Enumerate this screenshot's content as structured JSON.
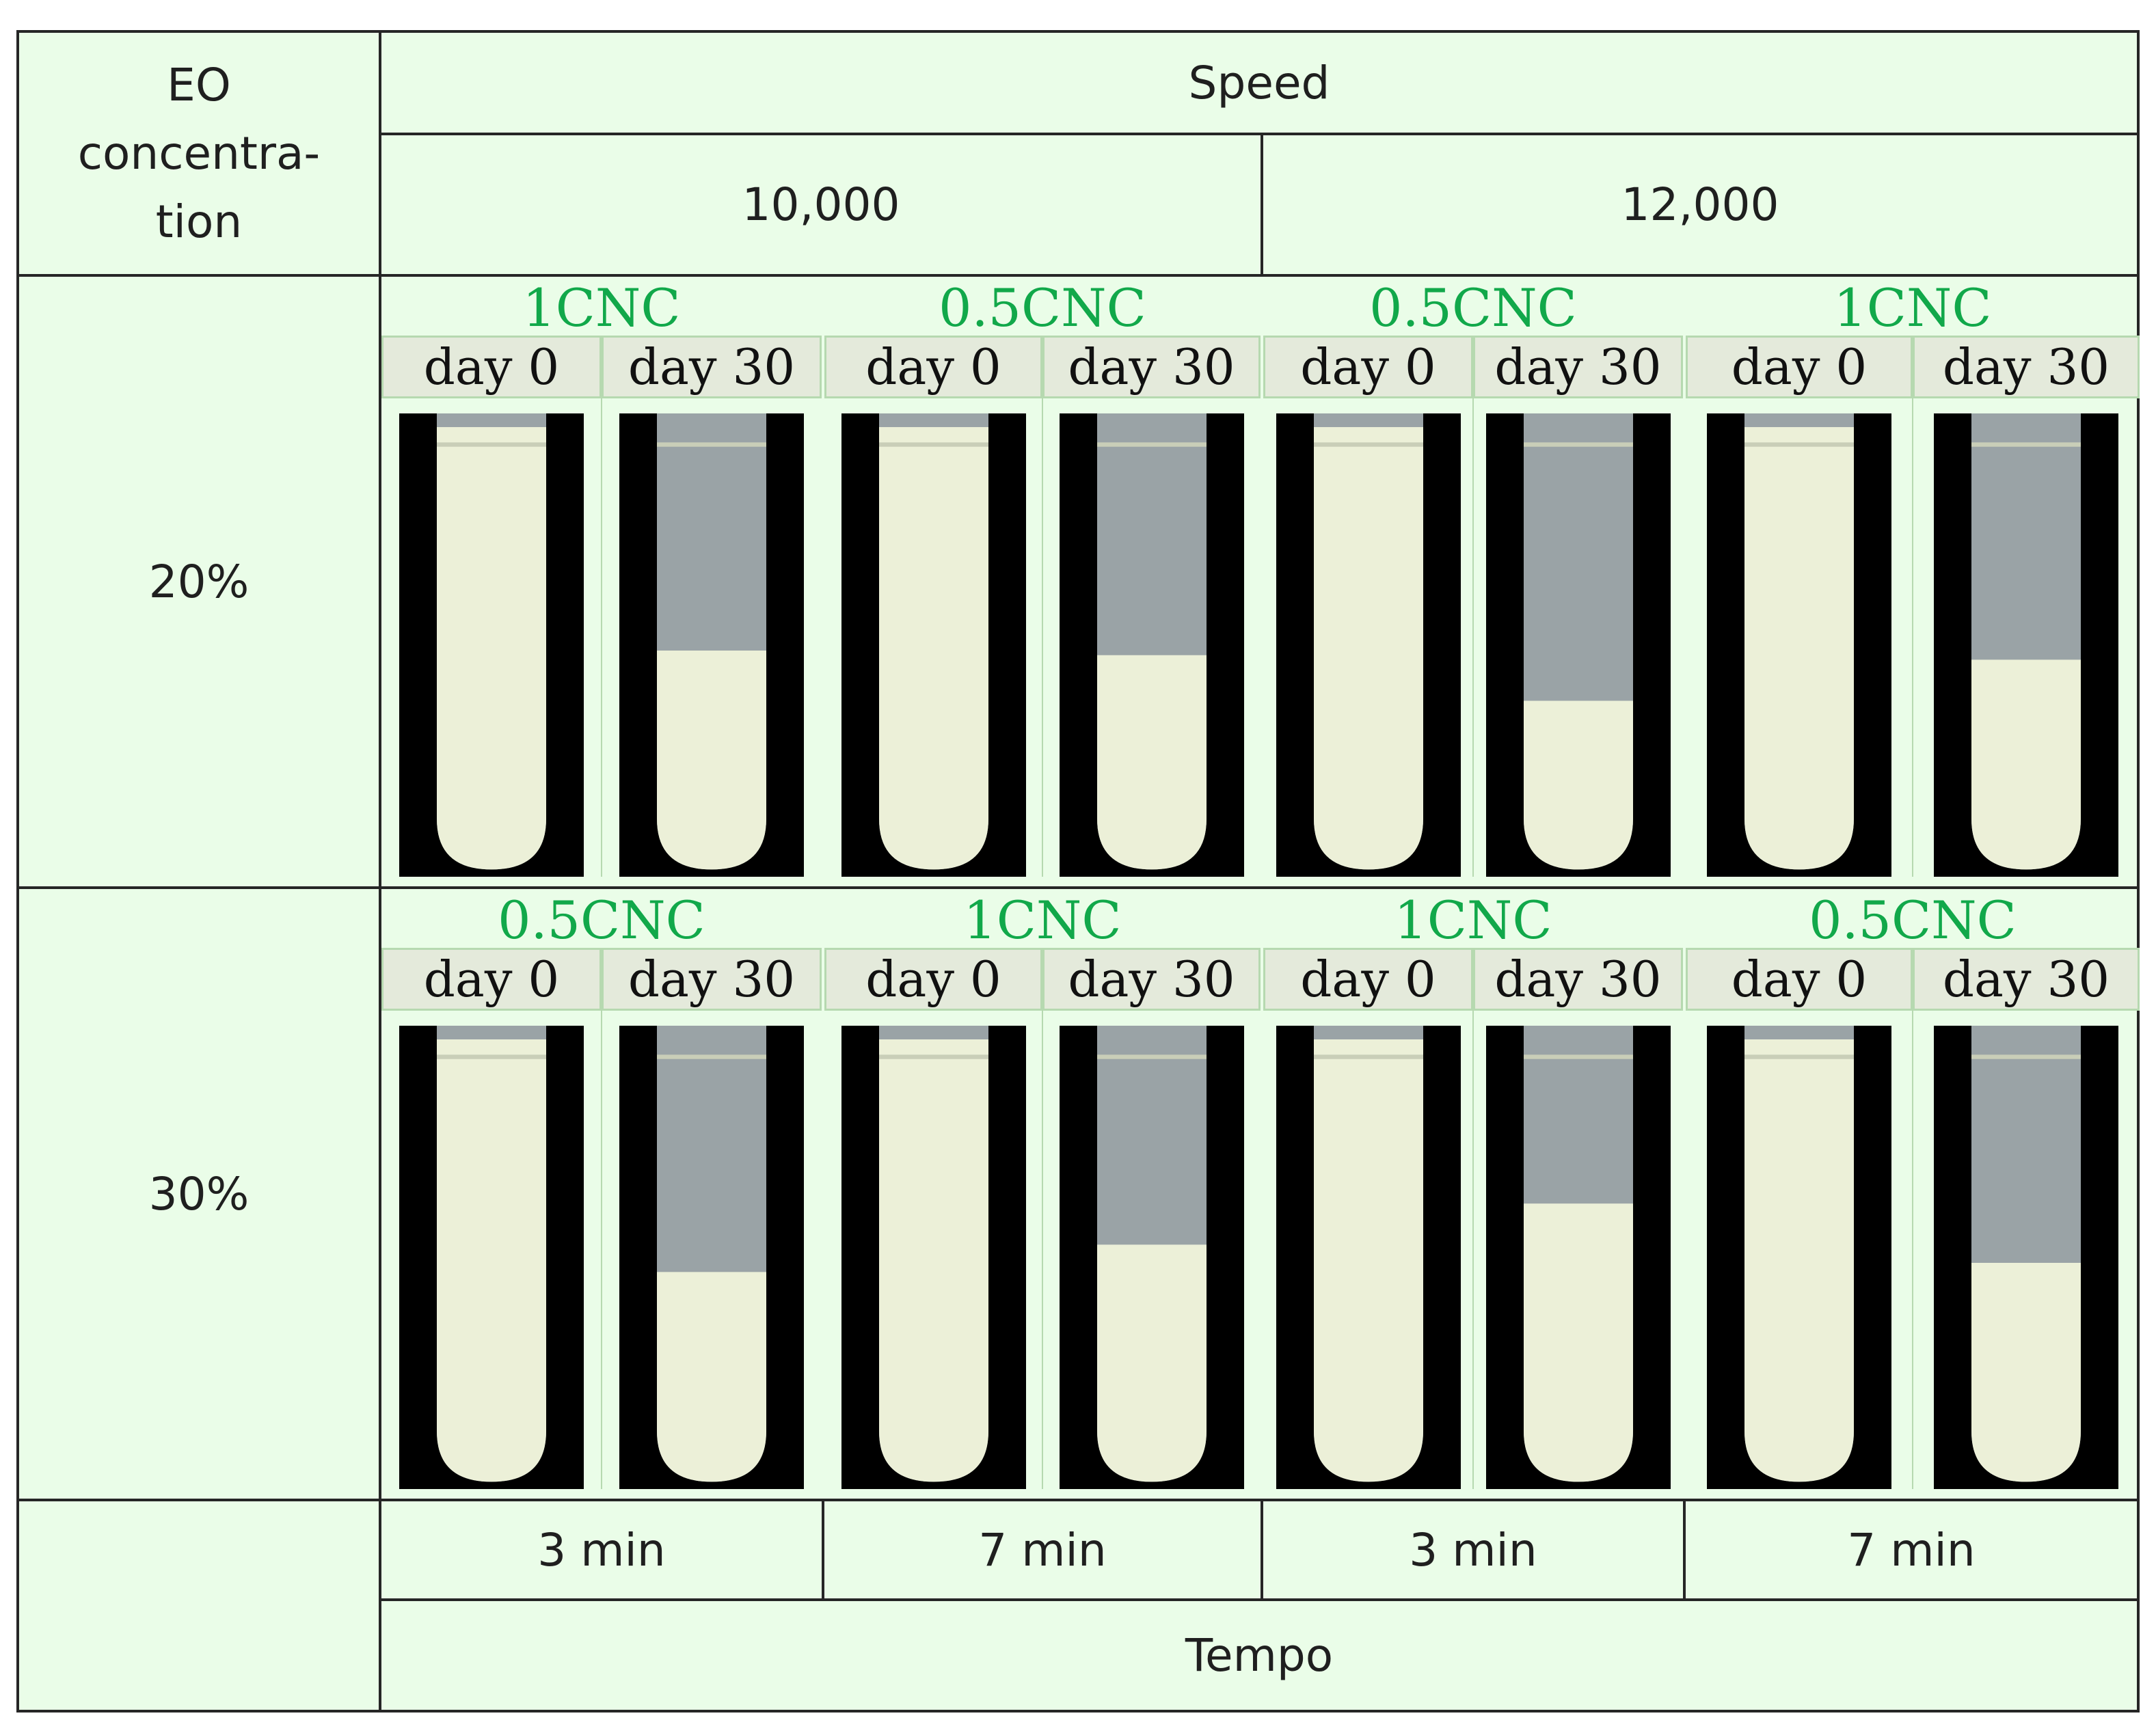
{
  "header": {
    "eo_label": "EO\nconcentra-\ntion",
    "speed_label": "Speed",
    "speed_values": [
      "10,000",
      "12,000"
    ]
  },
  "rows": [
    {
      "label": "20%",
      "blocks": [
        {
          "title": "1CNC",
          "day_labels": [
            "day 0",
            "day 30"
          ],
          "day30_level": 0.48
        },
        {
          "title": "0.5CNC",
          "day_labels": [
            "day 0",
            "day 30"
          ],
          "day30_level": 0.47
        },
        {
          "title": "0.5CNC",
          "day_labels": [
            "day 0",
            "day 30"
          ],
          "day30_level": 0.37
        },
        {
          "title": "1CNC",
          "day_labels": [
            "day 0",
            "day 30"
          ],
          "day30_level": 0.46
        }
      ]
    },
    {
      "label": "30%",
      "blocks": [
        {
          "title": "0.5CNC",
          "day_labels": [
            "day 0",
            "day 30"
          ],
          "day30_level": 0.46
        },
        {
          "title": "1CNC",
          "day_labels": [
            "day 0",
            "day 30"
          ],
          "day30_level": 0.52
        },
        {
          "title": "1CNC",
          "day_labels": [
            "day 0",
            "day 30"
          ],
          "day30_level": 0.61
        },
        {
          "title": "0.5CNC",
          "day_labels": [
            "day 0",
            "day 30"
          ],
          "day30_level": 0.48
        }
      ]
    }
  ],
  "footer": {
    "times": [
      "3 min",
      "7 min",
      "3 min",
      "7 min"
    ],
    "tempo_label": "Tempo"
  },
  "colors": {
    "cell_bg": "#eafde8",
    "title_green": "#11a84a",
    "emulsion": "#ecf0d8",
    "border": "#262626"
  }
}
